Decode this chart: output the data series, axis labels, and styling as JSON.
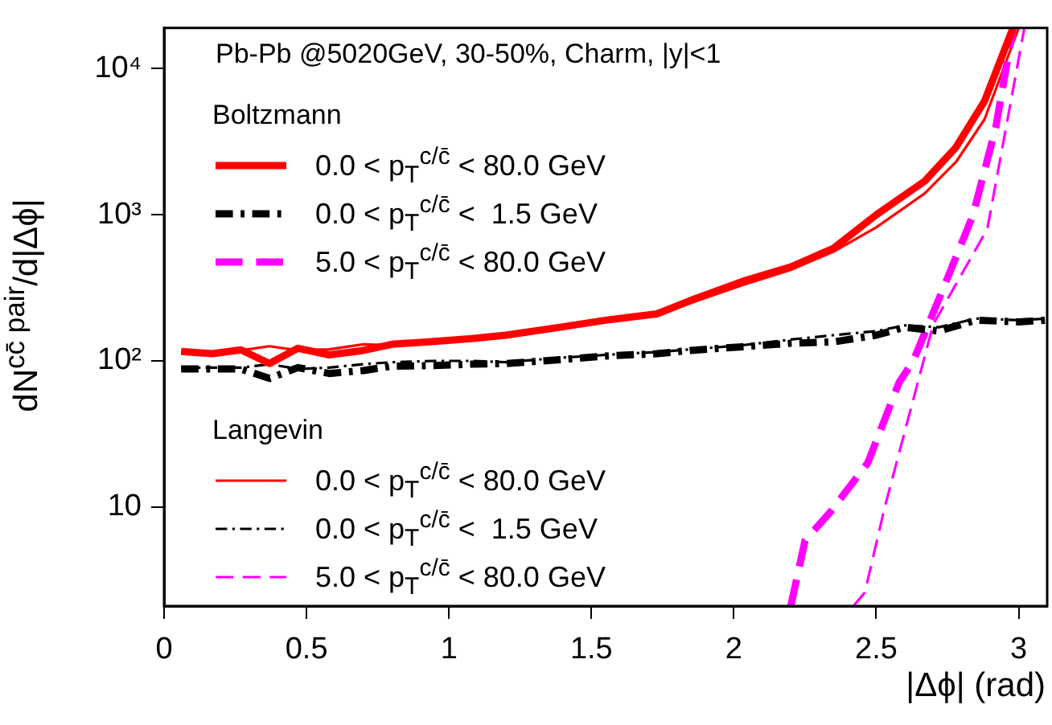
{
  "chart_data": {
    "type": "line",
    "title": "Pb-Pb @5020GeV, 30-50%, Charm, |y|<1",
    "xlabel": "|Δϕ| (rad)",
    "ylabel": "dN$^{cc̄ pair}$/d|Δϕ|",
    "annotations": [
      "Boltzmann",
      "Langevin"
    ],
    "xlim": [
      0,
      3.1
    ],
    "xticks": [
      0,
      0.5,
      1,
      1.5,
      2,
      2.5,
      3
    ],
    "ylim": [
      2.1,
      19000
    ],
    "yticks": [
      {
        "value": 10,
        "label": "10"
      },
      {
        "value": 100,
        "label": "10²"
      },
      {
        "value": 1000,
        "label": "10³"
      },
      {
        "value": 10000,
        "label": "10⁴"
      }
    ],
    "log": "y",
    "grid": false,
    "legend": "left",
    "marker": "none",
    "series": [
      {
        "name": "0.0 < p$_{T}$$^{c/c̄}$ < 80.0 GeV",
        "color": "#ff0000",
        "line_style": "solid",
        "x": [
          0.06,
          0.17,
          0.27,
          0.37,
          0.47,
          0.58,
          0.7,
          0.8,
          0.95,
          1.08,
          1.2,
          1.39,
          1.55,
          1.73,
          1.85,
          2.03,
          2.2,
          2.35,
          2.5,
          2.67,
          2.78,
          2.88,
          2.98
        ],
        "values": [
          116,
          112,
          119,
          96,
          122,
          110,
          118,
          130,
          136,
          142,
          150,
          170,
          190,
          210,
          260,
          350,
          440,
          590,
          1000,
          1700,
          2900,
          6000,
          19000
        ]
      },
      {
        "name": "0.0 < p$_{T}$$^{c/c̄}$ <  1.5 GeV",
        "color": "#000000",
        "line_style": "dashdot",
        "x": [
          0.06,
          0.17,
          0.27,
          0.37,
          0.47,
          0.58,
          0.7,
          0.8,
          0.95,
          1.08,
          1.2,
          1.39,
          1.55,
          1.73,
          1.85,
          2.03,
          2.2,
          2.35,
          2.5,
          2.6,
          2.72,
          2.85,
          3.0,
          3.1
        ],
        "values": [
          88,
          88,
          88,
          76,
          90,
          82,
          86,
          92,
          93,
          95,
          96,
          102,
          108,
          112,
          118,
          125,
          132,
          135,
          150,
          170,
          160,
          190,
          185,
          190
        ]
      },
      {
        "name": "5.0 < p$_{T}$$^{c/c̄}$ < 80.0 GeV",
        "color": "#ff00ff",
        "line_style": "dashed",
        "x": [
          2.2,
          2.25,
          2.34,
          2.47,
          2.58,
          2.63,
          2.74,
          2.84,
          2.92,
          2.98
        ],
        "values": [
          2.1,
          5.9,
          9.3,
          20,
          71,
          100,
          330,
          1000,
          4000,
          19000
        ]
      },
      {
        "name": "0.0 < p$_{T}$$^{c/c̄}$ < 80.0 GeV",
        "color": "#ff0000",
        "line_style": "solid",
        "x": [
          0.06,
          0.17,
          0.27,
          0.37,
          0.47,
          0.58,
          0.7,
          0.8,
          0.95,
          1.08,
          1.2,
          1.39,
          1.55,
          1.73,
          1.85,
          2.03,
          2.2,
          2.35,
          2.5,
          2.67,
          2.78,
          2.88,
          3.0
        ],
        "values": [
          116,
          115,
          118,
          126,
          118,
          120,
          130,
          128,
          138,
          145,
          148,
          168,
          188,
          205,
          250,
          330,
          420,
          560,
          820,
          1400,
          2300,
          4500,
          19000
        ]
      },
      {
        "name": "0.0 < p$_{T}$$^{c/c̄}$ <  1.5 GeV",
        "color": "#000000",
        "line_style": "dashdot",
        "x": [
          0.06,
          0.17,
          0.27,
          0.37,
          0.47,
          0.58,
          0.7,
          0.8,
          0.95,
          1.08,
          1.2,
          1.39,
          1.55,
          1.73,
          1.85,
          2.03,
          2.2,
          2.35,
          2.5,
          2.6,
          2.72,
          2.85,
          3.0,
          3.1
        ],
        "values": [
          90,
          90,
          90,
          95,
          88,
          90,
          95,
          98,
          100,
          100,
          98,
          105,
          110,
          115,
          120,
          128,
          140,
          150,
          160,
          175,
          170,
          195,
          190,
          195
        ]
      },
      {
        "name": "5.0 < p$_{T}$$^{c/c̄}$ < 80.0 GeV",
        "color": "#ff00ff",
        "line_style": "dashed",
        "x": [
          2.42,
          2.46,
          2.53,
          2.7,
          2.89,
          3.02
        ],
        "values": [
          2.1,
          2.6,
          10,
          178,
          800,
          19000
        ]
      }
    ]
  }
}
